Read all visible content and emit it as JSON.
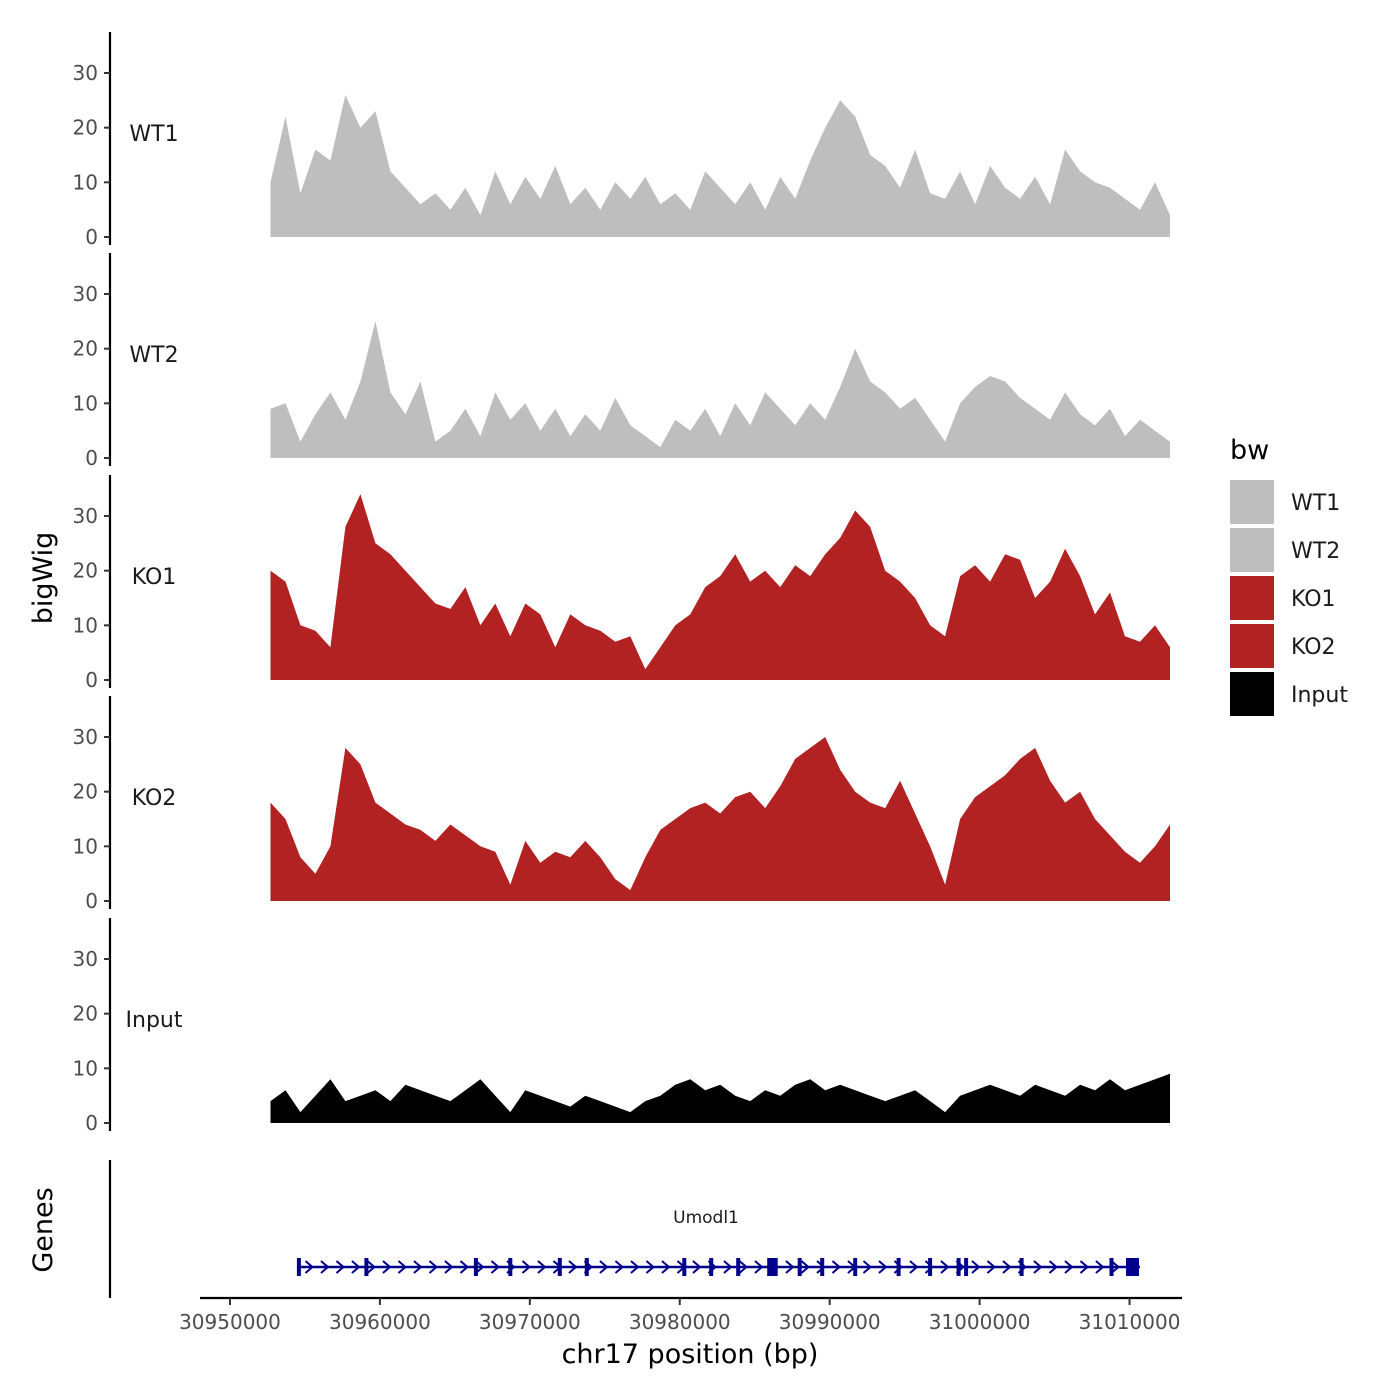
{
  "chart_data": {
    "type": "area",
    "chromosome": "chr17",
    "xlabel": "chr17 position (bp)",
    "ylabel": "bigWig",
    "gene_track_label": "Genes",
    "xlim": [
      30948000,
      31013500
    ],
    "x_ticks": [
      30950000,
      30960000,
      30970000,
      30980000,
      30990000,
      31000000,
      31010000
    ],
    "ylim": [
      0,
      37.5
    ],
    "y_ticks": [
      0,
      10,
      20,
      30
    ],
    "legend": {
      "title": "bw",
      "position": "right",
      "entries": [
        {
          "label": "WT1",
          "color": "#bebebe"
        },
        {
          "label": "WT2",
          "color": "#bebebe"
        },
        {
          "label": "KO1",
          "color": "#b22222"
        },
        {
          "label": "KO2",
          "color": "#b22222"
        },
        {
          "label": "Input",
          "color": "#000000"
        }
      ]
    },
    "x_start": 30952700,
    "x_step": 1000,
    "series": [
      {
        "name": "WT1",
        "color": "#bebebe",
        "values": [
          10,
          22,
          8,
          16,
          14,
          26,
          20,
          23,
          12,
          9,
          6,
          8,
          5,
          9,
          4,
          12,
          6,
          11,
          7,
          13,
          6,
          9,
          5,
          10,
          7,
          11,
          6,
          8,
          5,
          12,
          9,
          6,
          10,
          5,
          11,
          7,
          14,
          20,
          25,
          22,
          15,
          13,
          9,
          16,
          8,
          7,
          12,
          6,
          13,
          9,
          7,
          11,
          6,
          16,
          12,
          10,
          9,
          7,
          5,
          10,
          4
        ]
      },
      {
        "name": "WT2",
        "color": "#bebebe",
        "values": [
          9,
          10,
          3,
          8,
          12,
          7,
          14,
          25,
          12,
          8,
          14,
          3,
          5,
          9,
          4,
          12,
          7,
          10,
          5,
          9,
          4,
          8,
          5,
          11,
          6,
          4,
          2,
          7,
          5,
          9,
          4,
          10,
          6,
          12,
          9,
          6,
          10,
          7,
          13,
          20,
          14,
          12,
          9,
          11,
          7,
          3,
          10,
          13,
          15,
          14,
          11,
          9,
          7,
          12,
          8,
          6,
          9,
          4,
          7,
          5,
          3
        ]
      },
      {
        "name": "KO1",
        "color": "#b22222",
        "values": [
          20,
          18,
          10,
          9,
          6,
          28,
          34,
          25,
          23,
          20,
          17,
          14,
          13,
          17,
          10,
          14,
          8,
          14,
          12,
          6,
          12,
          10,
          9,
          7,
          8,
          2,
          6,
          10,
          12,
          17,
          19,
          23,
          18,
          20,
          17,
          21,
          19,
          23,
          26,
          31,
          28,
          20,
          18,
          15,
          10,
          8,
          19,
          21,
          18,
          23,
          22,
          15,
          18,
          24,
          19,
          12,
          16,
          8,
          7,
          10,
          6
        ]
      },
      {
        "name": "KO2",
        "color": "#b22222",
        "values": [
          18,
          15,
          8,
          5,
          10,
          28,
          25,
          18,
          16,
          14,
          13,
          11,
          14,
          12,
          10,
          9,
          3,
          11,
          7,
          9,
          8,
          11,
          8,
          4,
          2,
          8,
          13,
          15,
          17,
          18,
          16,
          19,
          20,
          17,
          21,
          26,
          28,
          30,
          24,
          20,
          18,
          17,
          22,
          16,
          10,
          3,
          15,
          19,
          21,
          23,
          26,
          28,
          22,
          18,
          20,
          15,
          12,
          9,
          7,
          10,
          14
        ]
      },
      {
        "name": "Input",
        "color": "#000000",
        "values": [
          4,
          6,
          2,
          5,
          8,
          4,
          5,
          6,
          4,
          7,
          6,
          5,
          4,
          6,
          8,
          5,
          2,
          6,
          5,
          4,
          3,
          5,
          4,
          3,
          2,
          4,
          5,
          7,
          8,
          6,
          7,
          5,
          4,
          6,
          5,
          7,
          8,
          6,
          7,
          6,
          5,
          4,
          5,
          6,
          4,
          2,
          5,
          6,
          7,
          6,
          5,
          7,
          6,
          5,
          7,
          6,
          8,
          6,
          7,
          8,
          9
        ]
      }
    ],
    "gene": {
      "name": "Umodl1",
      "strand": "+",
      "color": "#00008b",
      "start": 30954500,
      "end": 31010700,
      "exons": [
        30954600,
        30959100,
        30966400,
        30968700,
        30972000,
        30973800,
        30980300,
        30982100,
        30983900,
        30986100,
        30986400,
        30988000,
        30989500,
        30991700,
        30994600,
        30996700,
        30998600,
        30999100,
        31002800,
        31008800,
        31010200
      ]
    }
  }
}
